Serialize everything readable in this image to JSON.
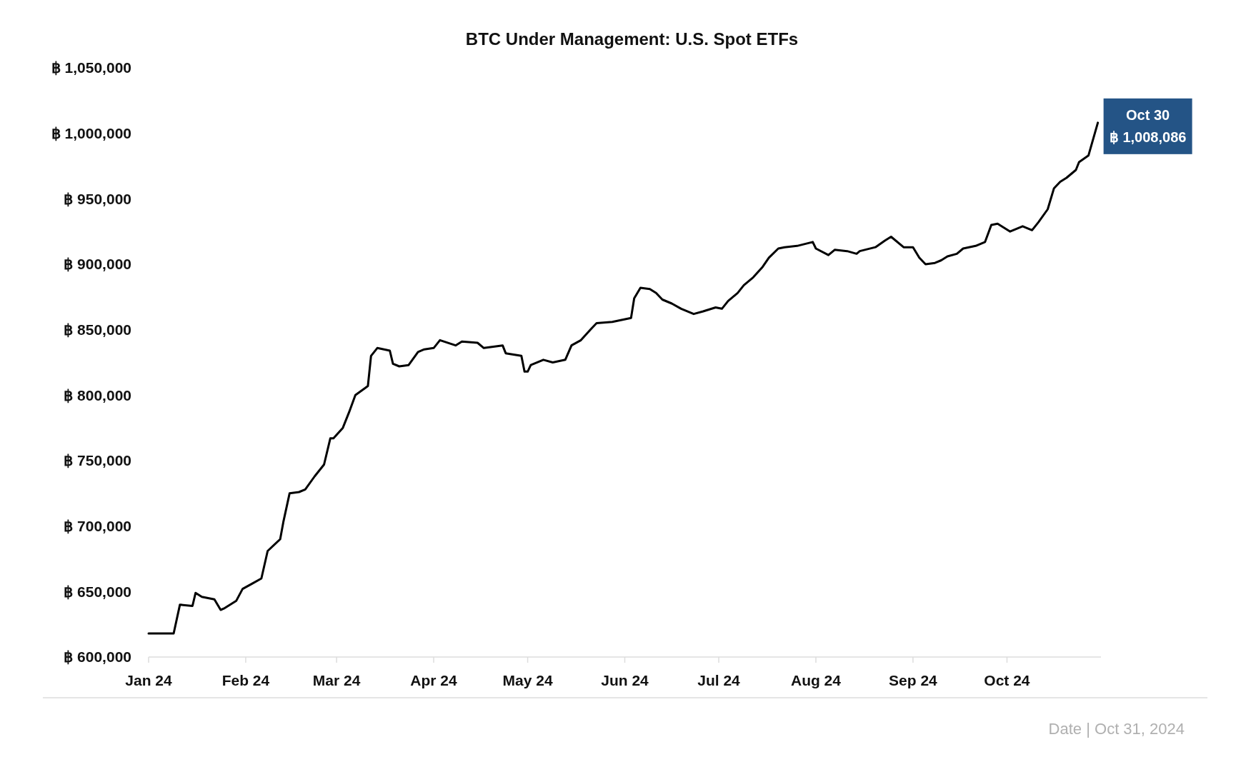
{
  "chart_data": {
    "type": "line",
    "title": "BTC Under Management: U.S. Spot ETFs",
    "x": [
      "2024-01-01",
      "2024-01-09",
      "2024-01-11",
      "2024-01-15",
      "2024-01-16",
      "2024-01-18",
      "2024-01-22",
      "2024-01-24",
      "2024-01-25",
      "2024-01-29",
      "2024-01-31",
      "2024-02-03",
      "2024-02-06",
      "2024-02-08",
      "2024-02-12",
      "2024-02-13",
      "2024-02-15",
      "2024-02-18",
      "2024-02-20",
      "2024-02-23",
      "2024-02-26",
      "2024-02-28",
      "2024-02-29",
      "2024-03-03",
      "2024-03-05",
      "2024-03-07",
      "2024-03-11",
      "2024-03-12",
      "2024-03-14",
      "2024-03-18",
      "2024-03-19",
      "2024-03-21",
      "2024-03-24",
      "2024-03-27",
      "2024-03-29",
      "2024-04-01",
      "2024-04-03",
      "2024-04-08",
      "2024-04-10",
      "2024-04-15",
      "2024-04-17",
      "2024-04-23",
      "2024-04-24",
      "2024-04-29",
      "2024-04-30",
      "2024-05-01",
      "2024-05-02",
      "2024-05-06",
      "2024-05-09",
      "2024-05-13",
      "2024-05-15",
      "2024-05-18",
      "2024-05-21",
      "2024-05-23",
      "2024-05-28",
      "2024-06-03",
      "2024-06-04",
      "2024-06-06",
      "2024-06-09",
      "2024-06-11",
      "2024-06-13",
      "2024-06-16",
      "2024-06-19",
      "2024-06-23",
      "2024-06-26",
      "2024-06-30",
      "2024-07-02",
      "2024-07-04",
      "2024-07-07",
      "2024-07-09",
      "2024-07-12",
      "2024-07-15",
      "2024-07-17",
      "2024-07-20",
      "2024-07-22",
      "2024-07-26",
      "2024-07-31",
      "2024-08-01",
      "2024-08-05",
      "2024-08-07",
      "2024-08-11",
      "2024-08-14",
      "2024-08-15",
      "2024-08-20",
      "2024-08-23",
      "2024-08-25",
      "2024-08-29",
      "2024-09-01",
      "2024-09-03",
      "2024-09-05",
      "2024-09-08",
      "2024-09-10",
      "2024-09-12",
      "2024-09-15",
      "2024-09-17",
      "2024-09-21",
      "2024-09-24",
      "2024-09-26",
      "2024-09-28",
      "2024-09-30",
      "2024-10-02",
      "2024-10-06",
      "2024-10-09",
      "2024-10-11",
      "2024-10-14",
      "2024-10-16",
      "2024-10-18",
      "2024-10-20",
      "2024-10-23",
      "2024-10-24",
      "2024-10-27",
      "2024-10-30"
    ],
    "series": [
      {
        "color": "#000000",
        "values": [
          618000,
          618000,
          640000,
          639000,
          649000,
          646000,
          644000,
          636000,
          637000,
          643000,
          652000,
          656000,
          660000,
          681000,
          690000,
          703000,
          725000,
          726000,
          728000,
          738000,
          747000,
          767000,
          767000,
          775000,
          787000,
          800000,
          807000,
          830000,
          836000,
          834000,
          824000,
          822000,
          823000,
          833000,
          835000,
          836000,
          842000,
          838000,
          841000,
          840000,
          836000,
          838000,
          832000,
          830000,
          818000,
          818000,
          823000,
          827000,
          825000,
          827000,
          838000,
          842000,
          850000,
          855000,
          856000,
          859000,
          874000,
          882000,
          881000,
          878000,
          873000,
          870000,
          866000,
          862000,
          864000,
          867000,
          866000,
          872000,
          878000,
          884000,
          890000,
          898000,
          905000,
          912000,
          913000,
          914000,
          917000,
          912000,
          907000,
          911000,
          910000,
          908000,
          910000,
          913000,
          918000,
          921000,
          913000,
          913000,
          905000,
          900000,
          901000,
          903000,
          906000,
          908000,
          912000,
          914000,
          917000,
          930000,
          931000,
          928000,
          925000,
          929000,
          926000,
          932000,
          942000,
          958000,
          963000,
          966000,
          972000,
          978000,
          983000,
          1008086
        ]
      }
    ],
    "xlim": [
      "2024-01-01",
      "2024-10-31"
    ],
    "xticks": [
      {
        "value": "2024-01-01",
        "label": "Jan 24"
      },
      {
        "value": "2024-02-01",
        "label": "Feb 24"
      },
      {
        "value": "2024-03-01",
        "label": "Mar 24"
      },
      {
        "value": "2024-04-01",
        "label": "Apr 24"
      },
      {
        "value": "2024-05-01",
        "label": "May 24"
      },
      {
        "value": "2024-06-01",
        "label": "Jun 24"
      },
      {
        "value": "2024-07-01",
        "label": "Jul 24"
      },
      {
        "value": "2024-08-01",
        "label": "Aug 24"
      },
      {
        "value": "2024-09-01",
        "label": "Sep 24"
      },
      {
        "value": "2024-10-01",
        "label": "Oct 24"
      }
    ],
    "ylim": [
      600000,
      1050000
    ],
    "yticks": [
      {
        "value": 600000,
        "label": "฿ 600,000"
      },
      {
        "value": 650000,
        "label": "฿ 650,000"
      },
      {
        "value": 700000,
        "label": "฿ 700,000"
      },
      {
        "value": 750000,
        "label": "฿ 750,000"
      },
      {
        "value": 800000,
        "label": "฿ 800,000"
      },
      {
        "value": 850000,
        "label": "฿ 850,000"
      },
      {
        "value": 900000,
        "label": "฿ 900,000"
      },
      {
        "value": 950000,
        "label": "฿ 950,000"
      },
      {
        "value": 1000000,
        "label": "฿ 1,000,000"
      },
      {
        "value": 1050000,
        "label": "฿ 1,050,000"
      }
    ],
    "grid": false,
    "marker": "none",
    "line_style": "solid",
    "annotations": [
      {
        "text": "Oct 30\n฿ 1,008,086",
        "x": "2024-10-30",
        "y": 1008086
      },
      "Date | Oct 31, 2024"
    ]
  }
}
